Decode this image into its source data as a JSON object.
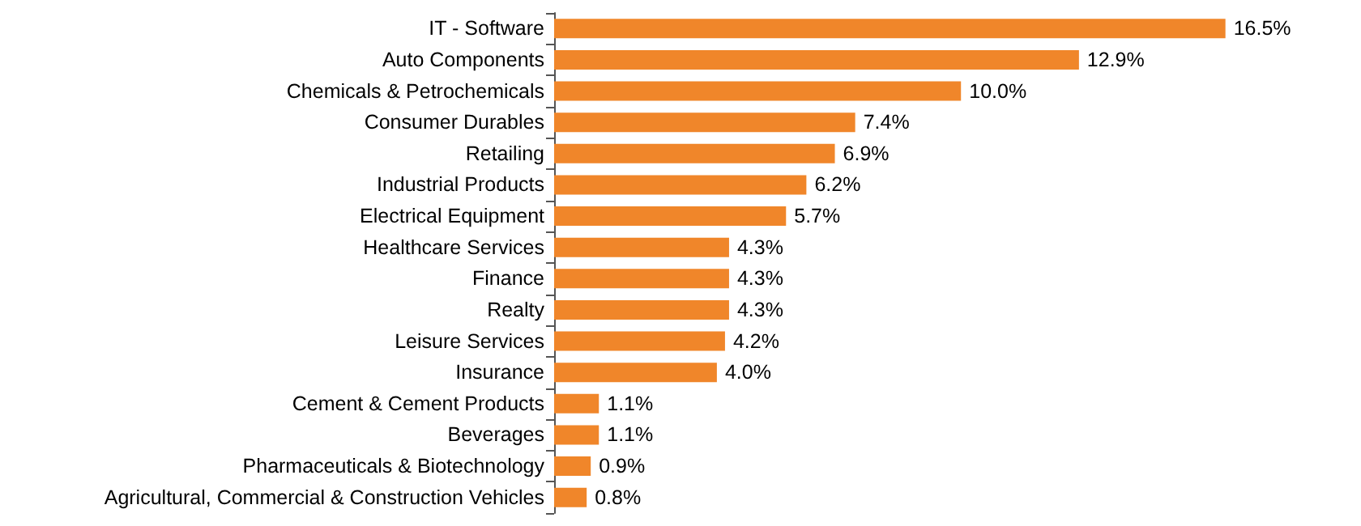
{
  "chart_data": {
    "type": "bar",
    "orientation": "horizontal",
    "color": "#f0862a",
    "categories": [
      "IT - Software",
      "Auto Components",
      "Chemicals & Petrochemicals",
      "Consumer Durables",
      "Retailing",
      "Industrial Products",
      "Electrical Equipment",
      "Healthcare Services",
      "Finance",
      "Realty",
      "Leisure Services",
      "Insurance",
      "Cement & Cement Products",
      "Beverages",
      "Pharmaceuticals & Biotechnology",
      "Agricultural, Commercial & Construction Vehicles"
    ],
    "values": [
      16.5,
      12.9,
      10.0,
      7.4,
      6.9,
      6.2,
      5.7,
      4.3,
      4.3,
      4.3,
      4.2,
      4.0,
      1.1,
      1.1,
      0.9,
      0.8
    ],
    "value_labels": [
      "16.5%",
      "12.9%",
      "10.0%",
      "7.4%",
      "6.9%",
      "6.2%",
      "5.7%",
      "4.3%",
      "4.3%",
      "4.3%",
      "4.2%",
      "4.0%",
      "1.1%",
      "1.1%",
      "0.9%",
      "0.8%"
    ]
  }
}
